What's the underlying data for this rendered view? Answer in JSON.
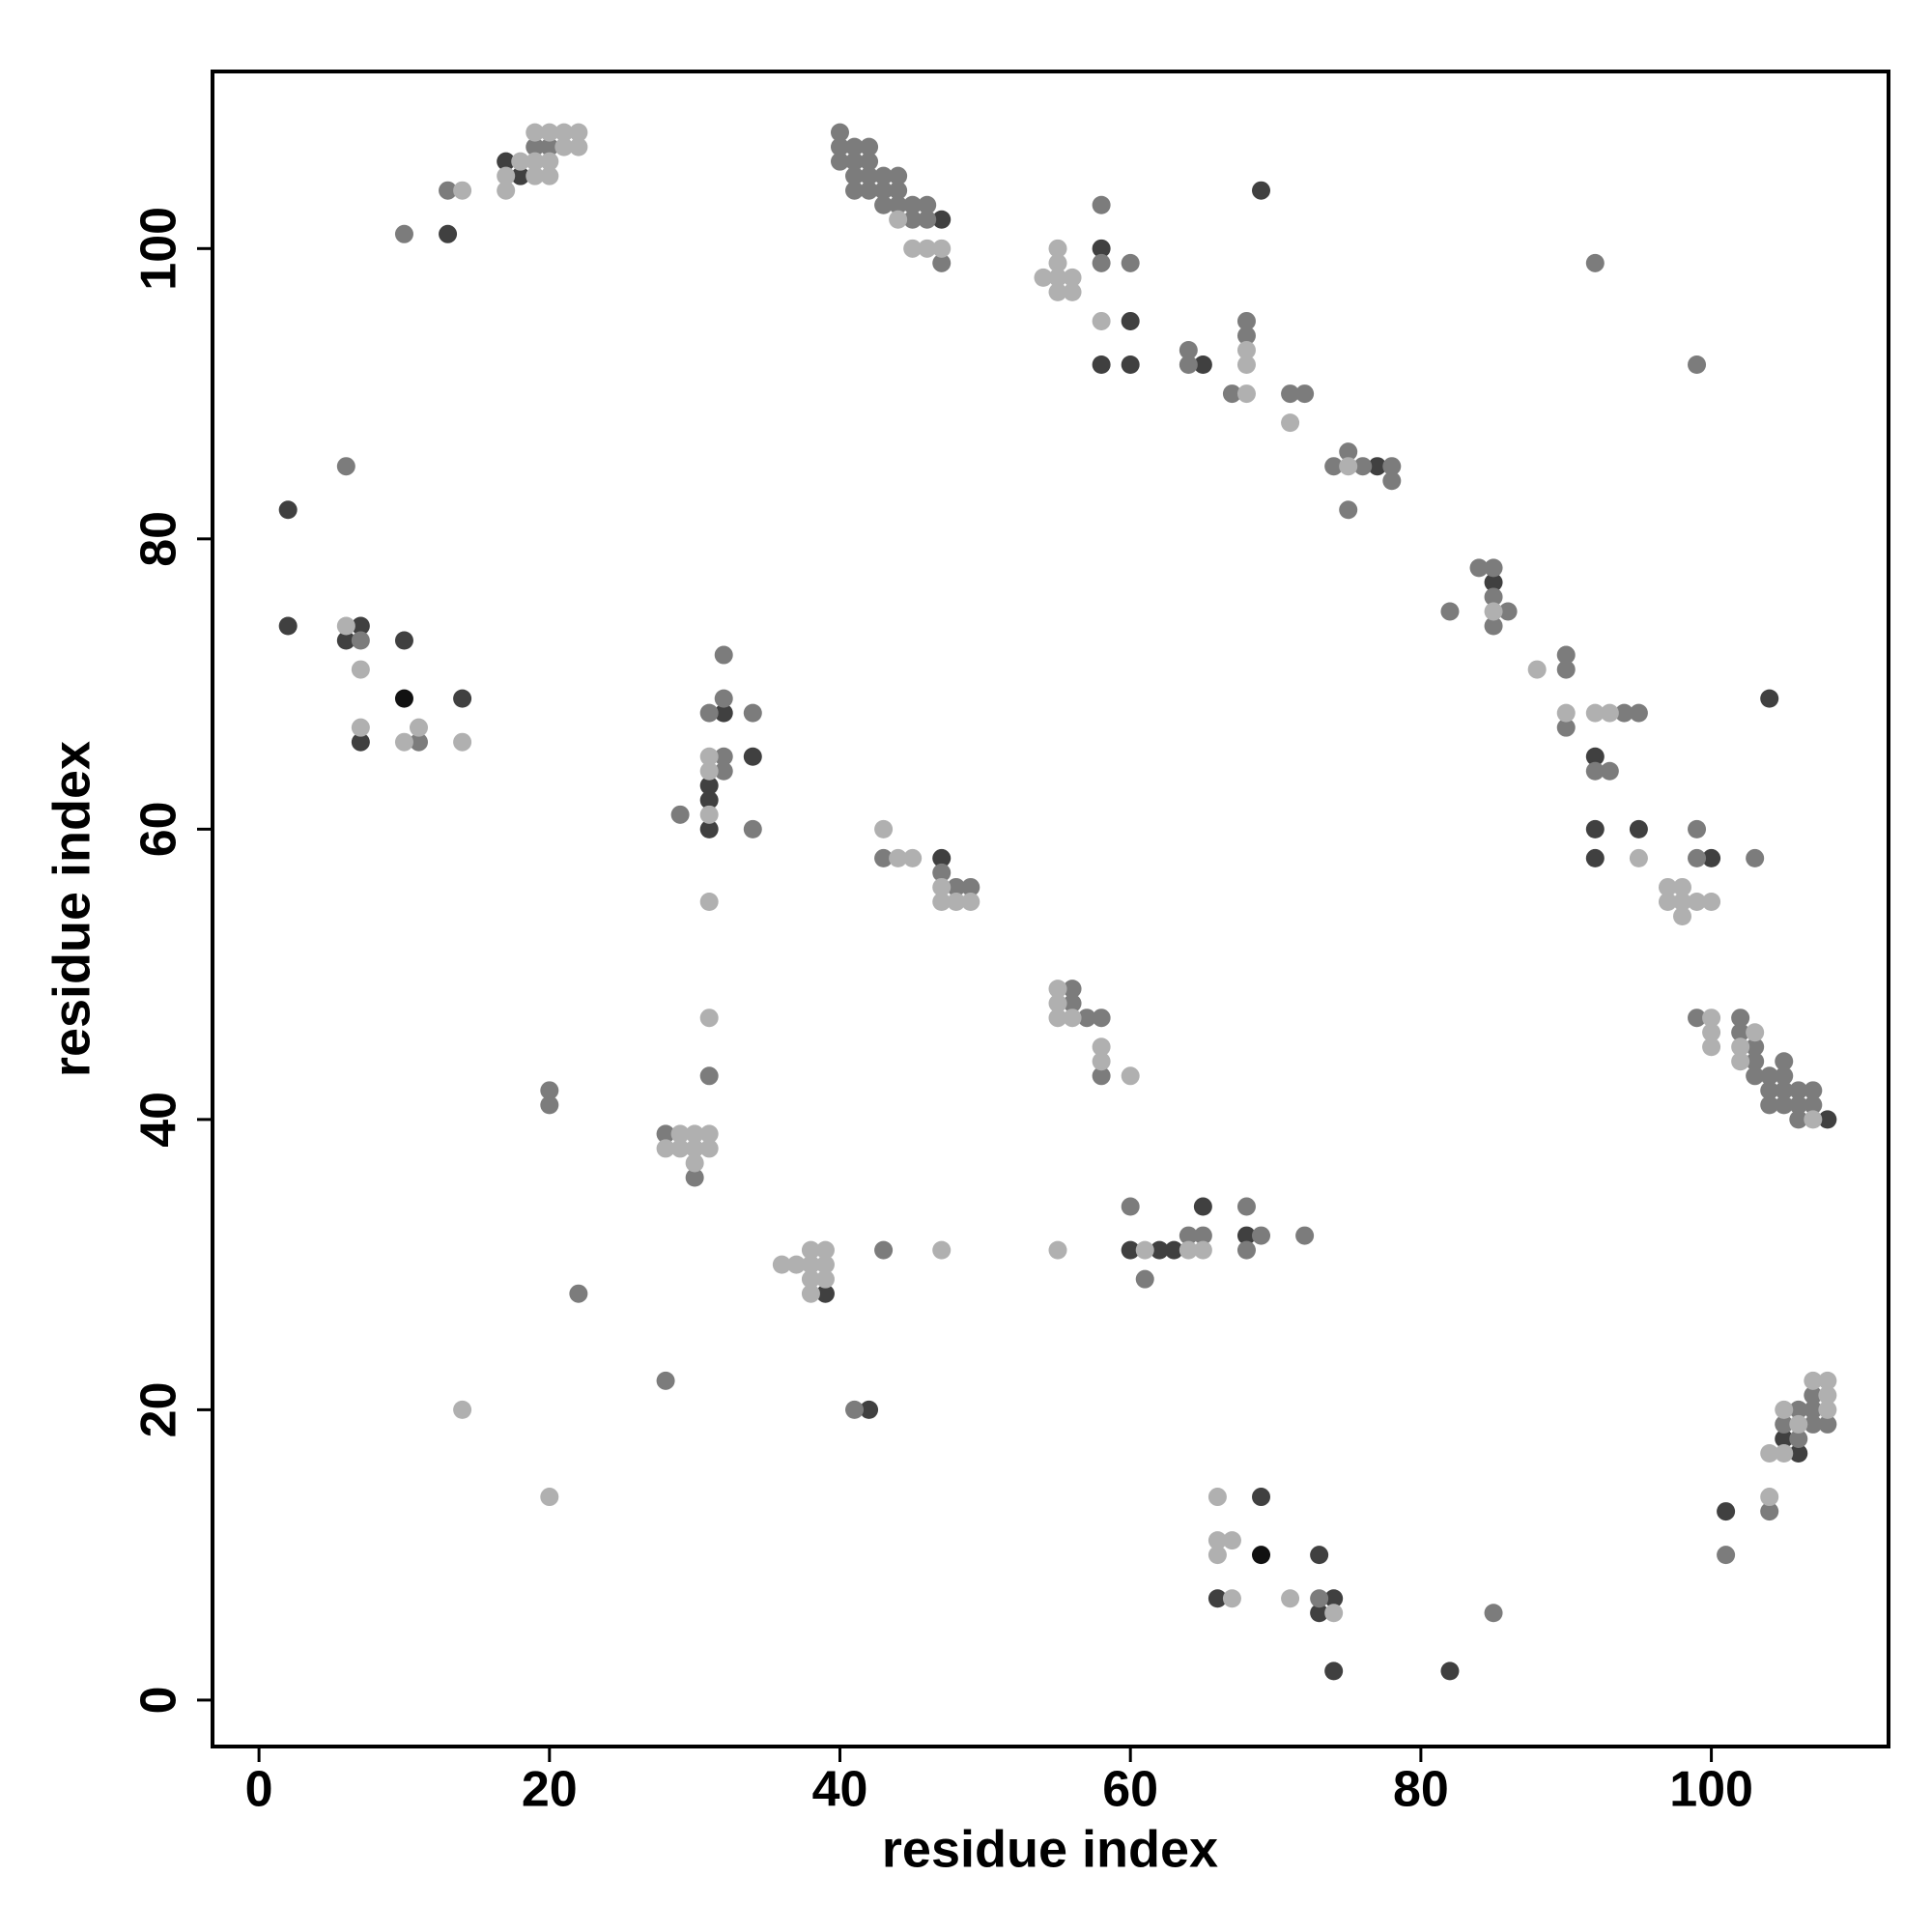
{
  "chart_data": {
    "type": "scatter",
    "xlabel": "residue index",
    "ylabel": "residue index",
    "xlim": [
      -3.2,
      112.2
    ],
    "ylim": [
      -3.2,
      112.2
    ],
    "xticks": [
      0,
      20,
      40,
      60,
      80,
      100
    ],
    "yticks": [
      0,
      20,
      40,
      60,
      80,
      100
    ],
    "series": [
      {
        "color": "#111111",
        "x": [
          10,
          69
        ],
        "values": [
          69,
          10
        ]
      },
      {
        "color": "#404040",
        "x": [
          17,
          18,
          13,
          47,
          58,
          60,
          58,
          60,
          65,
          69,
          77,
          85,
          92,
          92,
          92,
          95,
          104,
          100,
          108,
          2,
          2,
          7,
          6,
          10,
          7,
          14,
          32,
          31,
          34,
          31,
          31,
          47,
          39,
          60,
          62,
          63,
          65,
          68,
          42,
          69,
          73,
          66,
          74,
          73,
          74,
          82,
          105,
          106,
          101
        ],
        "values": [
          106,
          105,
          101,
          102,
          100,
          95,
          92,
          92,
          92,
          104,
          85,
          77,
          65,
          60,
          58,
          60,
          69,
          58,
          40,
          82,
          74,
          74,
          73,
          73,
          66,
          69,
          68,
          63,
          65,
          62,
          60,
          58,
          28,
          31,
          31,
          31,
          34,
          32,
          20,
          14,
          10,
          7,
          7,
          6,
          2,
          2,
          18,
          17,
          13
        ]
      },
      {
        "color": "#7c7c7c",
        "x": [
          19,
          20,
          13,
          10,
          40,
          40,
          41,
          42,
          40,
          41,
          42,
          41,
          42,
          43,
          44,
          41,
          42,
          43,
          44,
          43,
          44,
          45,
          46,
          45,
          46,
          47,
          58,
          60,
          58,
          64,
          64,
          68,
          68,
          67,
          71,
          72,
          74,
          75,
          76,
          78,
          78,
          75,
          82,
          84,
          85,
          85,
          86,
          85,
          90,
          90,
          90,
          94,
          95,
          92,
          93,
          92,
          99,
          99,
          99,
          103,
          99,
          102,
          102,
          103,
          103,
          103,
          104,
          104,
          104,
          105,
          105,
          105,
          105,
          106,
          106,
          106,
          107,
          107,
          6,
          7,
          11,
          32,
          31,
          32,
          34,
          32,
          32,
          29,
          34,
          31,
          43,
          47,
          48,
          49,
          56,
          56,
          57,
          58,
          58,
          20,
          20,
          28,
          30,
          22,
          43,
          60,
          64,
          65,
          61,
          68,
          69,
          68,
          72,
          28,
          41,
          73,
          85,
          107,
          106,
          107,
          105,
          107,
          108,
          106,
          104,
          101
        ],
        "values": [
          107,
          107,
          104,
          101,
          108,
          107,
          107,
          107,
          106,
          106,
          106,
          105,
          105,
          105,
          105,
          104,
          104,
          104,
          104,
          103,
          103,
          103,
          103,
          102,
          102,
          99,
          103,
          99,
          99,
          93,
          92,
          95,
          94,
          90,
          90,
          90,
          85,
          86,
          85,
          85,
          84,
          82,
          75,
          78,
          78,
          76,
          75,
          74,
          72,
          71,
          67,
          68,
          68,
          64,
          64,
          99,
          92,
          60,
          58,
          58,
          47,
          47,
          46,
          45,
          44,
          43,
          43,
          42,
          41,
          44,
          43,
          42,
          41,
          42,
          41,
          40,
          42,
          41,
          85,
          73,
          66,
          72,
          68,
          69,
          68,
          65,
          64,
          61,
          60,
          43,
          58,
          57,
          56,
          56,
          49,
          48,
          47,
          47,
          43,
          42,
          41,
          39,
          36,
          28,
          31,
          34,
          32,
          32,
          29,
          34,
          32,
          31,
          32,
          22,
          20,
          7,
          6,
          21,
          20,
          20,
          19,
          19,
          19,
          18,
          13,
          10
        ]
      },
      {
        "color": "#b0b0b0",
        "x": [
          19,
          20,
          21,
          22,
          21,
          22,
          18,
          19,
          20,
          17,
          17,
          19,
          20,
          14,
          44,
          45,
          46,
          47,
          55,
          55,
          54,
          55,
          56,
          55,
          56,
          58,
          68,
          68,
          68,
          71,
          75,
          85,
          88,
          90,
          92,
          93,
          95,
          97,
          98,
          97,
          98,
          99,
          100,
          98,
          100,
          100,
          100,
          102,
          102,
          103,
          107,
          6,
          7,
          7,
          10,
          11,
          14,
          31,
          31,
          31,
          31,
          31,
          43,
          44,
          45,
          47,
          47,
          48,
          49,
          55,
          55,
          55,
          56,
          58,
          58,
          60,
          29,
          30,
          31,
          28,
          29,
          30,
          31,
          30,
          36,
          37,
          38,
          39,
          38,
          39,
          38,
          39,
          38,
          47,
          55,
          61,
          64,
          65,
          14,
          20,
          66,
          66,
          67,
          66,
          67,
          71,
          74,
          107,
          108,
          108,
          105,
          108,
          106,
          104,
          105,
          104
        ],
        "values": [
          108,
          108,
          108,
          108,
          107,
          107,
          106,
          106,
          106,
          105,
          104,
          105,
          105,
          104,
          102,
          100,
          100,
          100,
          100,
          99,
          98,
          98,
          98,
          97,
          97,
          95,
          93,
          92,
          90,
          88,
          85,
          75,
          71,
          68,
          68,
          68,
          58,
          56,
          56,
          55,
          55,
          55,
          55,
          54,
          47,
          46,
          45,
          45,
          44,
          46,
          40,
          74,
          71,
          67,
          66,
          67,
          66,
          65,
          64,
          61,
          55,
          47,
          60,
          58,
          58,
          56,
          55,
          55,
          55,
          49,
          48,
          47,
          47,
          45,
          44,
          43,
          39,
          39,
          39,
          38,
          38,
          38,
          38,
          37,
          30,
          30,
          31,
          31,
          30,
          30,
          29,
          29,
          28,
          31,
          31,
          31,
          31,
          31,
          20,
          14,
          14,
          11,
          11,
          10,
          7,
          7,
          6,
          22,
          22,
          21,
          20,
          20,
          19,
          17,
          17,
          14
        ]
      }
    ]
  }
}
